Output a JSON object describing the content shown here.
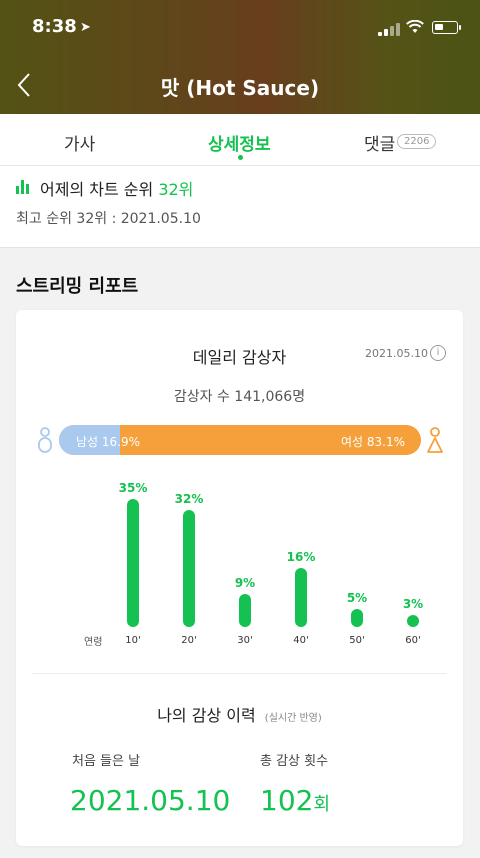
{
  "status_bar": {
    "time": "8:38",
    "location_icon": "location-arrow-icon"
  },
  "header": {
    "title": "맛 (Hot Sauce)",
    "back_icon": "chevron-left-icon"
  },
  "tabs": [
    {
      "label": "가사",
      "active": false
    },
    {
      "label": "상세정보",
      "active": true
    },
    {
      "label": "댓글",
      "badge": "2206",
      "active": false
    }
  ],
  "rank": {
    "label": "어제의 차트 순위",
    "value": "32위",
    "best": "최고 순위 32위 : 2021.05.10"
  },
  "report": {
    "title": "스트리밍 리포트",
    "daily_title": "데일리 감상자",
    "date": "2021.05.10",
    "info": "i",
    "listeners": "감상자 수 141,066명",
    "gender": {
      "male_label": "남성 16.9%",
      "female_label": "여성 83.1%",
      "male_pct": 16.9,
      "female_pct": 83.1
    },
    "age_axis_label": "연령",
    "ages": [
      {
        "name": "10'",
        "pct_label": "35%",
        "pct": 35
      },
      {
        "name": "20'",
        "pct_label": "32%",
        "pct": 32
      },
      {
        "name": "30'",
        "pct_label": "9%",
        "pct": 9
      },
      {
        "name": "40'",
        "pct_label": "16%",
        "pct": 16
      },
      {
        "name": "50'",
        "pct_label": "5%",
        "pct": 5
      },
      {
        "name": "60'",
        "pct_label": "3%",
        "pct": 3
      }
    ]
  },
  "my_history": {
    "title": "나의 감상 이력",
    "subtitle": "(실시간 반영)",
    "first_label": "처음 들은 날",
    "first_date": "2021.05.10",
    "total_label": "총 감상 횟수",
    "total_count": "102",
    "total_unit": "회"
  },
  "colors": {
    "accent": "#15c150",
    "male": "#a9c9ee",
    "female": "#f5a03a"
  }
}
